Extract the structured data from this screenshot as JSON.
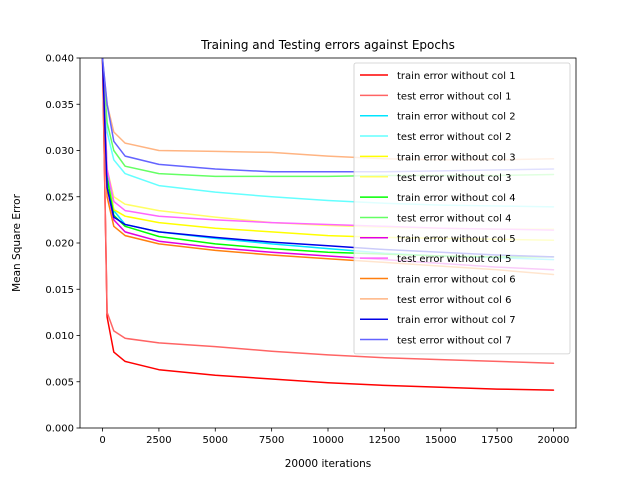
{
  "chart_data": {
    "type": "line",
    "title": "Training and Testing errors against Epochs",
    "xlabel": "20000 iterations",
    "ylabel": "Mean Square Error",
    "xlim": [
      -1000,
      21000
    ],
    "ylim": [
      0,
      0.04
    ],
    "grid": false,
    "legend_position": "top-right",
    "xticks": [
      0,
      2500,
      5000,
      7500,
      10000,
      12500,
      15000,
      17500,
      20000
    ],
    "xtick_labels": [
      "0",
      "2500",
      "5000",
      "7500",
      "10000",
      "12500",
      "15000",
      "17500",
      "20000"
    ],
    "yticks": [
      0,
      0.005,
      0.01,
      0.015,
      0.02,
      0.025,
      0.03,
      0.035,
      0.04
    ],
    "ytick_labels": [
      "0.000",
      "0.005",
      "0.010",
      "0.015",
      "0.020",
      "0.025",
      "0.030",
      "0.035",
      "0.040"
    ],
    "x": [
      0,
      200,
      500,
      1000,
      2500,
      5000,
      7500,
      10000,
      12500,
      15000,
      17500,
      20000
    ],
    "series": [
      {
        "name": "train error without col 1",
        "color": "#ff0000",
        "values": [
          0.04,
          0.012,
          0.0082,
          0.0072,
          0.0063,
          0.0057,
          0.0053,
          0.0049,
          0.0046,
          0.0044,
          0.0042,
          0.0041
        ]
      },
      {
        "name": "test error without col 1",
        "color": "#ff6464",
        "values": [
          0.04,
          0.0125,
          0.0105,
          0.0097,
          0.0092,
          0.0088,
          0.0083,
          0.0079,
          0.0076,
          0.0074,
          0.0072,
          0.007
        ]
      },
      {
        "name": "train error without col 2",
        "color": "#00e5ff",
        "values": [
          0.04,
          0.028,
          0.0235,
          0.022,
          0.0212,
          0.0205,
          0.0199,
          0.0194,
          0.0189,
          0.0186,
          0.0184,
          0.0182
        ]
      },
      {
        "name": "test error without col 2",
        "color": "#64ffff",
        "values": [
          0.04,
          0.032,
          0.029,
          0.0275,
          0.0262,
          0.0255,
          0.025,
          0.0246,
          0.0243,
          0.0241,
          0.024,
          0.0239
        ]
      },
      {
        "name": "train error without col 3",
        "color": "#ffff00",
        "values": [
          0.04,
          0.027,
          0.0236,
          0.0229,
          0.0222,
          0.0216,
          0.0212,
          0.0208,
          0.0206,
          0.0205,
          0.0204,
          0.0203
        ]
      },
      {
        "name": "test error without col 3",
        "color": "#ffff64",
        "values": [
          0.04,
          0.028,
          0.025,
          0.0242,
          0.0235,
          0.0228,
          0.0222,
          0.0219,
          0.0217,
          0.0216,
          0.0215,
          0.0215
        ]
      },
      {
        "name": "train error without col 4",
        "color": "#00ff00",
        "values": [
          0.04,
          0.027,
          0.023,
          0.0218,
          0.0207,
          0.0199,
          0.0194,
          0.019,
          0.0188,
          0.0186,
          0.0185,
          0.0185
        ]
      },
      {
        "name": "test error without col 4",
        "color": "#64ff64",
        "values": [
          0.04,
          0.033,
          0.03,
          0.0283,
          0.0275,
          0.0272,
          0.0272,
          0.0272,
          0.0273,
          0.0273,
          0.0273,
          0.0274
        ]
      },
      {
        "name": "train error without col 5",
        "color": "#e100e1",
        "values": [
          0.04,
          0.026,
          0.0225,
          0.0212,
          0.0202,
          0.0195,
          0.019,
          0.0186,
          0.0182,
          0.0178,
          0.0174,
          0.0171
        ]
      },
      {
        "name": "test error without col 5",
        "color": "#ff64ff",
        "values": [
          0.04,
          0.028,
          0.0245,
          0.0235,
          0.0229,
          0.0225,
          0.0222,
          0.022,
          0.0218,
          0.0216,
          0.0215,
          0.0214
        ]
      },
      {
        "name": "train error without col 6",
        "color": "#ff7f0e",
        "values": [
          0.04,
          0.025,
          0.0218,
          0.0208,
          0.0199,
          0.0192,
          0.0187,
          0.0183,
          0.0179,
          0.0175,
          0.0171,
          0.0166
        ]
      },
      {
        "name": "test error without col 6",
        "color": "#ffb482",
        "values": [
          0.04,
          0.035,
          0.032,
          0.0308,
          0.03,
          0.0299,
          0.0298,
          0.0294,
          0.0291,
          0.029,
          0.029,
          0.0291
        ]
      },
      {
        "name": "train error without col 7",
        "color": "#0000e6",
        "values": [
          0.04,
          0.026,
          0.0228,
          0.022,
          0.0212,
          0.0206,
          0.0201,
          0.0197,
          0.0193,
          0.019,
          0.0187,
          0.0185
        ]
      },
      {
        "name": "test error without col 7",
        "color": "#6464ff",
        "values": [
          0.04,
          0.035,
          0.031,
          0.0294,
          0.0285,
          0.028,
          0.0277,
          0.0277,
          0.0277,
          0.0278,
          0.0279,
          0.028
        ]
      }
    ]
  }
}
